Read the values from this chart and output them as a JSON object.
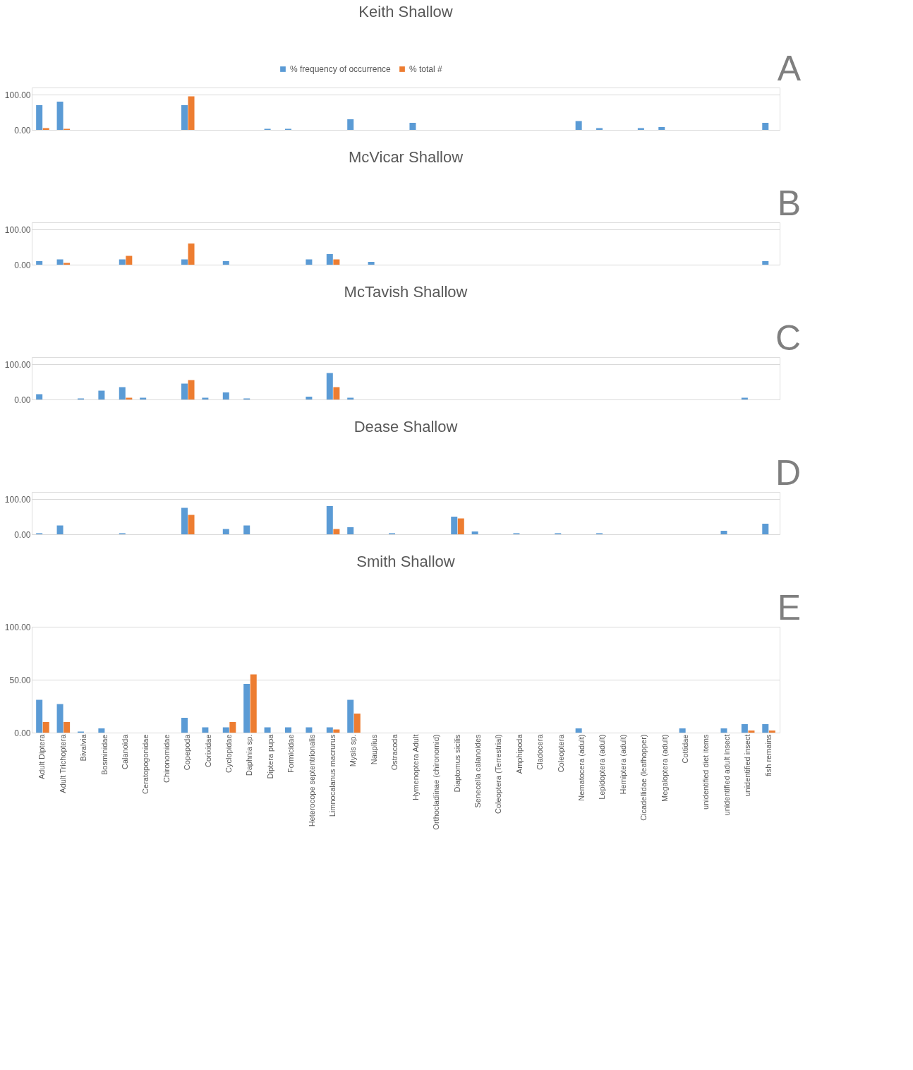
{
  "chart_data": [
    {
      "type": "bar",
      "title": "Keith Shallow",
      "annotations": [
        "A"
      ],
      "legend": "top",
      "tick_labels": "y",
      "grid": "y",
      "ylim": [
        0,
        120
      ],
      "yticks": [
        {
          "value": 0,
          "label": "0.00"
        },
        {
          "value": 100,
          "label": "100.00"
        }
      ],
      "categories": [
        null,
        null,
        null,
        null,
        null,
        null,
        null,
        null,
        null,
        null,
        null,
        null,
        null,
        null,
        null,
        null,
        null,
        null,
        null,
        null,
        null,
        null,
        null,
        null,
        null,
        null,
        null,
        null,
        null,
        null,
        null,
        null,
        null,
        null,
        null,
        null
      ],
      "series": [
        {
          "name": "% frequency of occurrence",
          "color": "#5b9bd5",
          "values": [
            70,
            80,
            0,
            0,
            0,
            0,
            0,
            70,
            0,
            0,
            0,
            3,
            3,
            0,
            0,
            30,
            0,
            0,
            20,
            0,
            0,
            0,
            0,
            0,
            0,
            0,
            25,
            5,
            0,
            5,
            8,
            0,
            0,
            0,
            0,
            20
          ]
        },
        {
          "name": "% total #",
          "color": "#ed7d31",
          "values": [
            5,
            3,
            0,
            0,
            0,
            0,
            0,
            95,
            0,
            0,
            0,
            0,
            0,
            0,
            0,
            0,
            0,
            0,
            0,
            0,
            0,
            0,
            0,
            0,
            0,
            0,
            0,
            0,
            0,
            0,
            0,
            0,
            0,
            0,
            0,
            0
          ]
        }
      ]
    },
    {
      "type": "bar",
      "title": "McVicar Shallow",
      "annotations": [
        "B"
      ],
      "tick_labels": "y",
      "grid": "y",
      "ylim": [
        0,
        120
      ],
      "yticks": [
        {
          "value": 0,
          "label": "0.00"
        },
        {
          "value": 100,
          "label": "100.00"
        }
      ],
      "categories": [
        null,
        null,
        null,
        null,
        null,
        null,
        null,
        null,
        null,
        null,
        null,
        null,
        null,
        null,
        null,
        null,
        null,
        null,
        null,
        null,
        null,
        null,
        null,
        null,
        null,
        null,
        null,
        null,
        null,
        null,
        null,
        null,
        null,
        null,
        null,
        null
      ],
      "series": [
        {
          "color": "#5b9bd5",
          "values": [
            10,
            15,
            0,
            0,
            15,
            0,
            0,
            15,
            0,
            10,
            0,
            0,
            0,
            15,
            30,
            0,
            8,
            0,
            0,
            0,
            0,
            0,
            0,
            0,
            0,
            0,
            0,
            0,
            0,
            0,
            0,
            0,
            0,
            0,
            0,
            10
          ]
        },
        {
          "color": "#ed7d31",
          "values": [
            0,
            5,
            0,
            0,
            25,
            0,
            0,
            60,
            0,
            0,
            0,
            0,
            0,
            0,
            15,
            0,
            0,
            0,
            0,
            0,
            0,
            0,
            0,
            0,
            0,
            0,
            0,
            0,
            0,
            0,
            0,
            0,
            0,
            0,
            0,
            0
          ]
        }
      ]
    },
    {
      "type": "bar",
      "title": "McTavish Shallow",
      "annotations": [
        "C"
      ],
      "tick_labels": "y",
      "grid": "y",
      "ylim": [
        0,
        120
      ],
      "yticks": [
        {
          "value": 0,
          "label": "0.00"
        },
        {
          "value": 100,
          "label": "100.00"
        }
      ],
      "categories": [
        null,
        null,
        null,
        null,
        null,
        null,
        null,
        null,
        null,
        null,
        null,
        null,
        null,
        null,
        null,
        null,
        null,
        null,
        null,
        null,
        null,
        null,
        null,
        null,
        null,
        null,
        null,
        null,
        null,
        null,
        null,
        null,
        null,
        null,
        null,
        null
      ],
      "series": [
        {
          "color": "#5b9bd5",
          "values": [
            15,
            0,
            3,
            25,
            35,
            5,
            0,
            45,
            5,
            20,
            3,
            0,
            0,
            8,
            75,
            5,
            0,
            0,
            0,
            0,
            0,
            0,
            0,
            0,
            0,
            0,
            0,
            0,
            0,
            0,
            0,
            0,
            0,
            0,
            5,
            0
          ]
        },
        {
          "color": "#ed7d31",
          "values": [
            0,
            0,
            0,
            0,
            5,
            0,
            0,
            55,
            0,
            0,
            0,
            0,
            0,
            0,
            35,
            0,
            0,
            0,
            0,
            0,
            0,
            0,
            0,
            0,
            0,
            0,
            0,
            0,
            0,
            0,
            0,
            0,
            0,
            0,
            0,
            0
          ]
        }
      ]
    },
    {
      "type": "bar",
      "title": "Dease Shallow",
      "annotations": [
        "D"
      ],
      "tick_labels": "y",
      "grid": "y",
      "ylim": [
        0,
        120
      ],
      "yticks": [
        {
          "value": 0,
          "label": "0.00"
        },
        {
          "value": 100,
          "label": "100.00"
        }
      ],
      "categories": [
        null,
        null,
        null,
        null,
        null,
        null,
        null,
        null,
        null,
        null,
        null,
        null,
        null,
        null,
        null,
        null,
        null,
        null,
        null,
        null,
        null,
        null,
        null,
        null,
        null,
        null,
        null,
        null,
        null,
        null,
        null,
        null,
        null,
        null,
        null,
        null
      ],
      "series": [
        {
          "color": "#5b9bd5",
          "values": [
            3,
            25,
            0,
            0,
            3,
            0,
            0,
            75,
            0,
            15,
            25,
            0,
            0,
            0,
            80,
            20,
            0,
            3,
            0,
            0,
            50,
            8,
            0,
            3,
            0,
            3,
            0,
            3,
            0,
            0,
            0,
            0,
            0,
            10,
            0,
            30
          ]
        },
        {
          "color": "#ed7d31",
          "values": [
            0,
            0,
            0,
            0,
            0,
            0,
            0,
            55,
            0,
            0,
            0,
            0,
            0,
            0,
            15,
            0,
            0,
            0,
            0,
            0,
            45,
            0,
            0,
            0,
            0,
            0,
            0,
            0,
            0,
            0,
            0,
            0,
            0,
            0,
            0,
            0
          ]
        }
      ]
    },
    {
      "type": "bar",
      "title": "Smith Shallow",
      "annotations": [
        "E"
      ],
      "grid": "y",
      "ylim": [
        0,
        100
      ],
      "yticks": [
        {
          "value": 0,
          "label": "0.00"
        },
        {
          "value": 50,
          "label": "50.00"
        },
        {
          "value": 100,
          "label": "100.00"
        }
      ],
      "categories": [
        "Adult Diptera",
        "Adult Trichoptera",
        "Bivalvia",
        "Bosminidae",
        "Calanoida",
        "Ceratopogonidae",
        "Chironomidae",
        "Copepoda",
        "Corixidae",
        "Cyclopidae",
        "Daphnia sp.",
        "Diptera pupa",
        "Formicidae",
        "Heterocope septentrionalis",
        "Limnocalanus macrurus",
        "Mysis sp.",
        "Nauplius",
        "Ostracoda",
        "Hymenoptera Adult",
        "Orthocladiinae (chironomid)",
        "Diaptomus sicilis",
        "Senecella calanoides",
        "Coleoptera (Terrestrial)",
        "Amphipoda",
        "Cladocera",
        "Coleoptera",
        "Nematocera (adult)",
        "Lepidoptera (adult)",
        "Hemiptera (adult)",
        "Cicadellidae (leafhopper)",
        "Megaloptera (adult)",
        "Cottidae",
        "unidentified diet items",
        "unidentified adult insect",
        "unidentified insect",
        "fish remains"
      ],
      "series": [
        {
          "color": "#5b9bd5",
          "values": [
            31,
            27,
            1,
            4,
            0,
            0,
            0,
            14,
            5,
            5,
            46,
            5,
            5,
            5,
            5,
            31,
            0,
            0,
            0,
            0,
            0,
            0,
            0,
            0,
            0,
            0,
            4,
            0,
            0,
            0,
            0,
            4,
            0,
            4,
            8,
            8
          ]
        },
        {
          "color": "#ed7d31",
          "values": [
            10,
            10,
            0,
            0,
            0,
            0,
            0,
            0,
            0,
            10,
            55,
            0,
            0,
            0,
            3,
            18,
            0,
            0,
            0,
            0,
            0,
            0,
            0,
            0,
            0,
            0,
            0,
            0,
            0,
            0,
            0,
            0,
            0,
            0,
            2,
            2
          ]
        }
      ]
    }
  ]
}
